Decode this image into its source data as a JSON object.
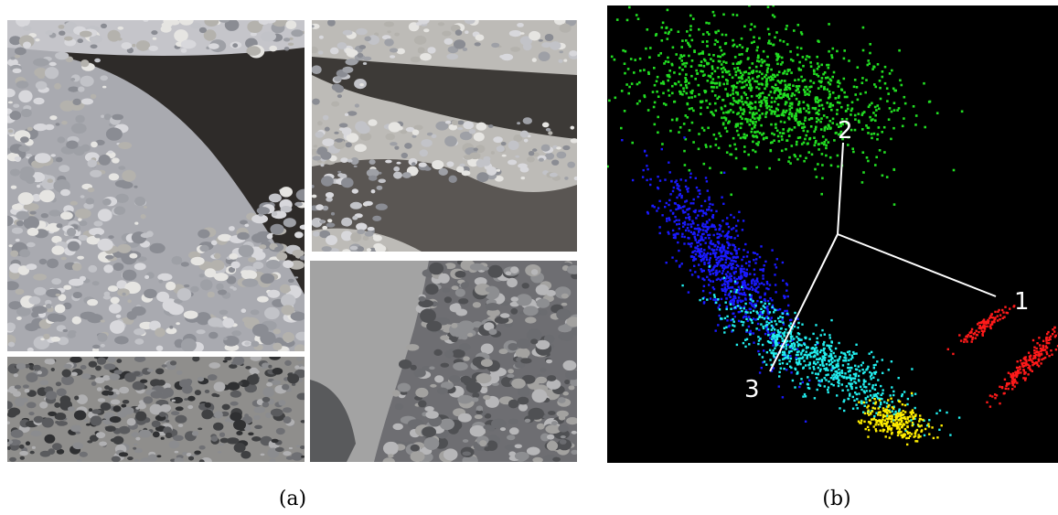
{
  "panel_a": {
    "caption": "(a)",
    "photos": [
      {
        "subject": "gravel-bar-with-dark-sand",
        "sand_color": "#2c2927",
        "stone_color": "#b9b9bd",
        "sky_free": true
      },
      {
        "subject": "gravel-and-wet-sand",
        "sand_color": "#4a4744",
        "stone_color": "#c9c7c3"
      },
      {
        "subject": "scattered-pebbles-on-sand",
        "sand_color": "#8c8b89",
        "stone_color": "#5f5f62"
      },
      {
        "subject": "sand-and-gravel-edge",
        "sand_color": "#9b9b9b",
        "stone_color": "#76767a"
      }
    ]
  },
  "panel_b": {
    "caption": "(b)",
    "axis_labels": [
      "1",
      "2",
      "3"
    ],
    "background": "#000000",
    "axis_color": "#ffffff"
  },
  "chart_data": {
    "type": "scatter",
    "title": "",
    "xlabel": "",
    "ylabel": "",
    "axes": [
      "1",
      "2",
      "3"
    ],
    "series": [
      {
        "color": "#22dd22",
        "shape": "elongated-cloud",
        "points": 1200
      },
      {
        "color": "#1a1aff",
        "shape": "diagonal-band",
        "points": 900
      },
      {
        "color": "#22eeee",
        "shape": "diagonal-band",
        "points": 700
      },
      {
        "color": "#ffee00",
        "shape": "small-cluster",
        "points": 250
      },
      {
        "color": "#ff1a1a",
        "shape": "two-streaks",
        "points": 300
      }
    ]
  }
}
